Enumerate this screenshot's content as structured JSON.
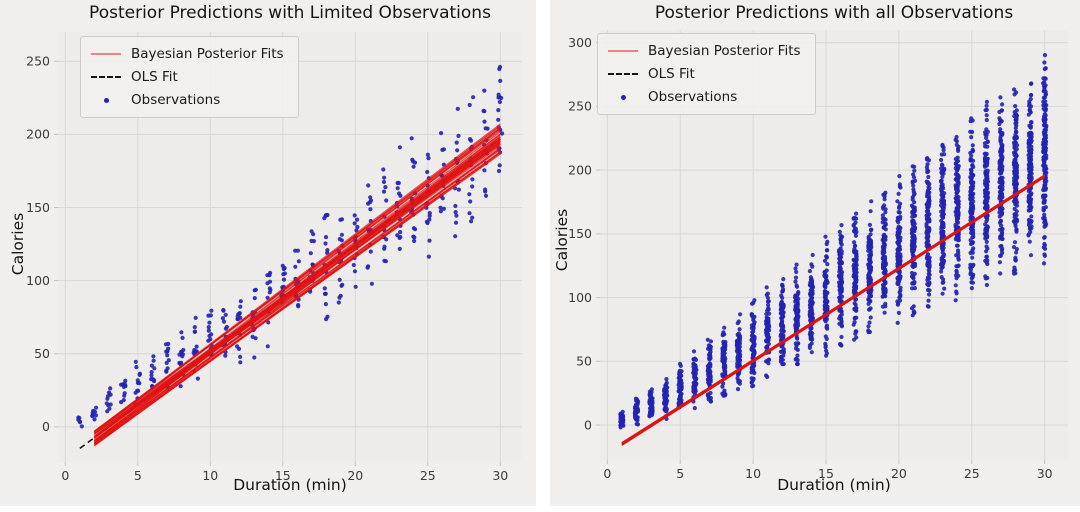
{
  "figure": {
    "background": "#ffffff",
    "panel_bg": "#f0efee",
    "axes_bg": "#edecea",
    "grid_color": "#d8d7d5",
    "tick_color": "#c2c1bf",
    "tick_label_color": "#3b3b3b",
    "title_color": "#141414",
    "scatter_color": "#2323b3",
    "posterior_color": "#e01212",
    "ols_color": "#141414",
    "legend_line_sample_color": "#e58585"
  },
  "legend": {
    "position": "upper left",
    "items": [
      {
        "label": "Bayesian Posterior Fits",
        "type": "line"
      },
      {
        "label": "OLS Fit",
        "type": "dashed"
      },
      {
        "label": "Observations",
        "type": "dot"
      }
    ]
  },
  "chart_data": [
    {
      "type": "scatter",
      "title": "Posterior Predictions with Limited Observations",
      "xlabel": "Duration (min)",
      "ylabel": "Calories",
      "xticks": [
        0,
        5,
        10,
        15,
        20,
        25,
        30
      ],
      "yticks": [
        0,
        50,
        100,
        150,
        200,
        250
      ],
      "xlim": [
        -0.5,
        31.5
      ],
      "ylim": [
        -24,
        270
      ],
      "grid": true,
      "legend_position": "upper left",
      "axes_rect": {
        "l": 58,
        "t": 32,
        "r": 522,
        "b": 462
      },
      "ols_fit": {
        "slope": 7.3,
        "intercept": -22,
        "x_range": [
          1,
          30
        ],
        "style": "dashed"
      },
      "posterior_fits": {
        "n_lines": 40,
        "slope": 7.3,
        "slope_spread": 0.5,
        "intercept": -22,
        "intercept_spread": 11,
        "x_range": [
          2,
          30
        ]
      },
      "observations": {
        "style": "limited",
        "clusters_format": [
          "duration",
          "count",
          "calories_min",
          "calories_max"
        ],
        "clusters": [
          [
            1,
            6,
            0,
            10
          ],
          [
            2,
            8,
            2,
            16
          ],
          [
            3,
            10,
            5,
            28
          ],
          [
            4,
            12,
            9,
            38
          ],
          [
            5,
            12,
            12,
            47
          ],
          [
            6,
            12,
            16,
            55
          ],
          [
            7,
            14,
            20,
            63
          ],
          [
            8,
            14,
            24,
            70
          ],
          [
            9,
            14,
            28,
            78
          ],
          [
            10,
            14,
            33,
            88
          ],
          [
            11,
            14,
            37,
            95
          ],
          [
            12,
            15,
            30,
            100
          ],
          [
            13,
            14,
            47,
            110
          ],
          [
            14,
            14,
            52,
            118
          ],
          [
            15,
            16,
            57,
            127
          ],
          [
            16,
            16,
            62,
            135
          ],
          [
            17,
            16,
            67,
            143
          ],
          [
            18,
            16,
            72,
            152
          ],
          [
            19,
            16,
            77,
            160
          ],
          [
            20,
            16,
            82,
            170
          ],
          [
            21,
            16,
            88,
            178
          ],
          [
            22,
            16,
            93,
            186
          ],
          [
            23,
            16,
            98,
            195
          ],
          [
            24,
            16,
            103,
            204
          ],
          [
            25,
            16,
            109,
            213
          ],
          [
            26,
            16,
            115,
            222
          ],
          [
            27,
            16,
            121,
            231
          ],
          [
            28,
            16,
            127,
            240
          ],
          [
            29,
            16,
            133,
            250
          ],
          [
            30,
            18,
            140,
            257
          ]
        ]
      }
    },
    {
      "type": "scatter",
      "title": "Posterior Predictions with all Observations",
      "xlabel": "Duration (min)",
      "ylabel": "Calories",
      "xticks": [
        0,
        5,
        10,
        15,
        20,
        25,
        30
      ],
      "yticks": [
        0,
        50,
        100,
        150,
        200,
        250,
        300
      ],
      "xlim": [
        -0.5,
        31.6
      ],
      "ylim": [
        -27.5,
        310
      ],
      "grid": true,
      "legend_position": "upper left",
      "axes_rect": {
        "l": 50,
        "t": 30,
        "r": 518,
        "b": 460
      },
      "ols_fit": {
        "slope": 7.24,
        "intercept": -22,
        "x_range": [
          1,
          30
        ],
        "style": "dashed"
      },
      "posterior_fits": {
        "n_lines": 14,
        "slope": 7.24,
        "slope_spread": 0.07,
        "intercept": -22,
        "intercept_spread": 2.5,
        "x_range": [
          1,
          30
        ]
      },
      "observations": {
        "style": "dense",
        "clusters_format": [
          "duration",
          "count",
          "calories_min",
          "calories_max"
        ],
        "clusters": [
          [
            1,
            44,
            -2,
            12
          ],
          [
            2,
            48,
            -1,
            21
          ],
          [
            3,
            52,
            2,
            31
          ],
          [
            4,
            56,
            3,
            41
          ],
          [
            5,
            60,
            7,
            51
          ],
          [
            6,
            64,
            11,
            60
          ],
          [
            7,
            68,
            16,
            70
          ],
          [
            8,
            72,
            20,
            80
          ],
          [
            9,
            76,
            25,
            89
          ],
          [
            10,
            80,
            30,
            99
          ],
          [
            11,
            84,
            35,
            109
          ],
          [
            12,
            88,
            40,
            118
          ],
          [
            13,
            92,
            44,
            128
          ],
          [
            14,
            96,
            49,
            138
          ],
          [
            15,
            100,
            54,
            148
          ],
          [
            16,
            104,
            59,
            157
          ],
          [
            17,
            108,
            64,
            167
          ],
          [
            18,
            112,
            68,
            177
          ],
          [
            19,
            116,
            73,
            186
          ],
          [
            20,
            120,
            78,
            196
          ],
          [
            21,
            124,
            83,
            206
          ],
          [
            22,
            128,
            88,
            215
          ],
          [
            23,
            132,
            92,
            225
          ],
          [
            24,
            136,
            97,
            235
          ],
          [
            25,
            140,
            102,
            245
          ],
          [
            26,
            144,
            107,
            254
          ],
          [
            27,
            148,
            112,
            264
          ],
          [
            28,
            152,
            116,
            274
          ],
          [
            29,
            156,
            121,
            283
          ],
          [
            30,
            160,
            126,
            292
          ]
        ]
      }
    }
  ]
}
